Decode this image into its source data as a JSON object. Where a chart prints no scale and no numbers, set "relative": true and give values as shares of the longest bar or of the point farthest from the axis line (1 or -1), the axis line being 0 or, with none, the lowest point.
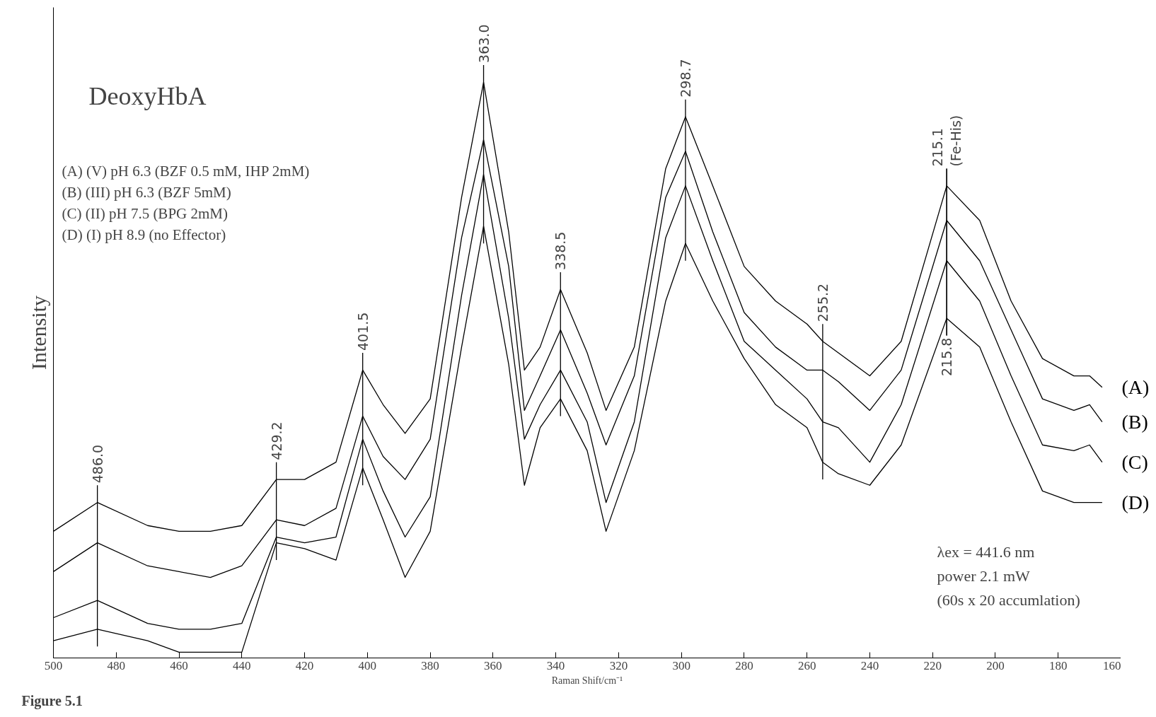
{
  "chart_data": {
    "type": "line",
    "title": "DeoxyHbA",
    "xlabel": "Raman Shift/cm⁻¹",
    "ylabel": "Intensity",
    "relative": true,
    "grid": false,
    "legend": false,
    "tick_labels": "x",
    "xlim": [
      500,
      160
    ],
    "xticks": [
      500,
      480,
      460,
      440,
      420,
      400,
      380,
      360,
      340,
      320,
      300,
      280,
      260,
      240,
      220,
      200,
      180,
      160
    ],
    "x": [
      500,
      486,
      470,
      460,
      450,
      440,
      429,
      420,
      410,
      401.5,
      395,
      388,
      380,
      370,
      363,
      355,
      350,
      345,
      338.5,
      330,
      324,
      315,
      305,
      298.7,
      290,
      280,
      270,
      260,
      255,
      250,
      240,
      230,
      215.5,
      205,
      195,
      185,
      175,
      170,
      166
    ],
    "series": [
      {
        "name": "(A)",
        "color": "#000000",
        "values": [
          0.22,
          0.27,
          0.23,
          0.22,
          0.22,
          0.23,
          0.31,
          0.31,
          0.34,
          0.5,
          0.44,
          0.39,
          0.45,
          0.8,
          1.0,
          0.74,
          0.5,
          0.54,
          0.64,
          0.53,
          0.43,
          0.54,
          0.85,
          0.94,
          0.82,
          0.68,
          0.62,
          0.58,
          0.55,
          0.53,
          0.49,
          0.55,
          0.82,
          0.76,
          0.62,
          0.52,
          0.49,
          0.49,
          0.47
        ]
      },
      {
        "name": "(B)",
        "color": "#000000",
        "values": [
          0.15,
          0.2,
          0.16,
          0.15,
          0.14,
          0.16,
          0.24,
          0.23,
          0.26,
          0.42,
          0.35,
          0.31,
          0.38,
          0.73,
          0.9,
          0.68,
          0.43,
          0.49,
          0.57,
          0.46,
          0.37,
          0.49,
          0.8,
          0.88,
          0.74,
          0.6,
          0.54,
          0.5,
          0.5,
          0.48,
          0.43,
          0.5,
          0.76,
          0.69,
          0.57,
          0.45,
          0.43,
          0.44,
          0.41
        ]
      },
      {
        "name": "(C)",
        "color": "#000000",
        "values": [
          0.07,
          0.1,
          0.06,
          0.05,
          0.05,
          0.06,
          0.21,
          0.2,
          0.21,
          0.38,
          0.29,
          0.21,
          0.28,
          0.63,
          0.84,
          0.59,
          0.38,
          0.44,
          0.5,
          0.41,
          0.27,
          0.41,
          0.73,
          0.82,
          0.69,
          0.55,
          0.5,
          0.45,
          0.41,
          0.4,
          0.34,
          0.44,
          0.69,
          0.62,
          0.49,
          0.37,
          0.36,
          0.37,
          0.34
        ]
      },
      {
        "name": "(D)",
        "color": "#000000",
        "values": [
          0.03,
          0.05,
          0.03,
          0.01,
          0.01,
          0.01,
          0.2,
          0.19,
          0.17,
          0.33,
          0.24,
          0.14,
          0.22,
          0.54,
          0.75,
          0.51,
          0.3,
          0.4,
          0.45,
          0.36,
          0.22,
          0.36,
          0.62,
          0.72,
          0.62,
          0.52,
          0.44,
          0.4,
          0.34,
          0.32,
          0.3,
          0.37,
          0.59,
          0.54,
          0.41,
          0.29,
          0.27,
          0.27,
          0.27
        ]
      }
    ],
    "annotations": [
      {
        "text": "486.0",
        "x": 486,
        "y": 0.27
      },
      {
        "text": "429.2",
        "x": 429,
        "y": 0.31
      },
      {
        "text": "401.5",
        "x": 401.5,
        "y": 0.5
      },
      {
        "text": "363.0",
        "x": 363,
        "y": 1.0
      },
      {
        "text": "338.5",
        "x": 338.5,
        "y": 0.64
      },
      {
        "text": "298.7",
        "x": 298.7,
        "y": 0.94
      },
      {
        "text": "255.2",
        "x": 255,
        "y": 0.55
      },
      {
        "text": "215.1\n(Fe-His)",
        "x": 215.5,
        "y": 0.82
      },
      {
        "text": "215.8",
        "x": 215.5,
        "y": 0.59
      },
      "(A) (V) pH 6.3 (BZF 0.5 mM, IHP 2mM)",
      "(B) (III) pH 6.3 (BZF 5mM)",
      "(C) (II) pH 7.5 (BPG 2mM)",
      "(D) (I) pH 8.9 (no Effector)",
      "λex = 441.6 nm",
      "power 2.1 mW",
      "(60s x 20 accumlation)",
      "Figure 5.1"
    ]
  }
}
